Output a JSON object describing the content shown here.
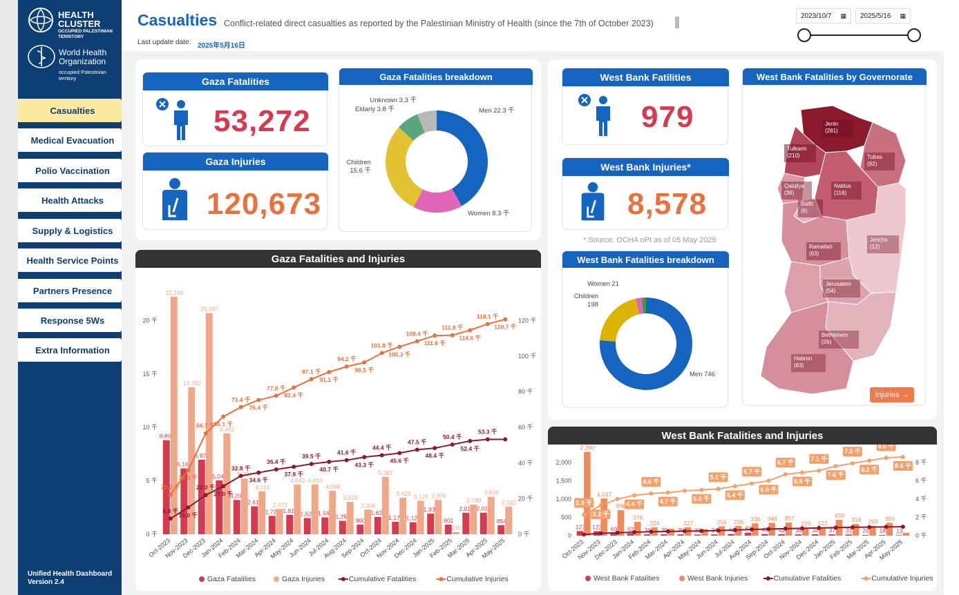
{
  "brand": {
    "line1": "HEALTH",
    "line2": "CLUSTER",
    "line3": "OCCUPIED PALESTINIAN",
    "line4": "TERRITORY",
    "who1": "World Health",
    "who2": "Organization",
    "who3": "occupied Palestinian",
    "who4": "territory"
  },
  "nav": {
    "items": [
      {
        "label": "Casualties",
        "active": true
      },
      {
        "label": "Medical Evacuation",
        "active": false
      },
      {
        "label": "Polio Vaccination",
        "active": false
      },
      {
        "label": "Health Attacks",
        "active": false
      },
      {
        "label": "Supply & Logistics",
        "active": false
      },
      {
        "label": "Health Service Points",
        "active": false
      },
      {
        "label": "Partners Presence",
        "active": false
      },
      {
        "label": "Response 5Ws",
        "active": false
      },
      {
        "label": "Extra Information",
        "active": false
      }
    ]
  },
  "footer": {
    "line1": "Unified Health Dashboard",
    "line2": "Version 2.4"
  },
  "header": {
    "title": "Casualties",
    "subtitle": "Conflict-related direct casualties as reported by the Palestinian Ministry of Health (since the 7th of October 2023)",
    "update_label": "Last update date:",
    "update_value": "2025年5月16日",
    "date_from": "2023/10/7",
    "date_to": "2025/5/16"
  },
  "gaza": {
    "fatal_title": "Gaza Fatalities",
    "fatal_value": "53,272",
    "injury_title": "Gaza Injuries",
    "injury_value": "120,673",
    "breakdown_title": "Gaza Fatalities breakdown",
    "breakdown": [
      {
        "label": "Men 22.3 千",
        "value": 22.3,
        "color": "#1565c0"
      },
      {
        "label": "Women 8.3 千",
        "value": 8.3,
        "color": "#e064b8"
      },
      {
        "label": "Children",
        "label2": "15.6 千",
        "value": 15.6,
        "color": "#e3c232"
      },
      {
        "label": "Eldarly 3.8 千",
        "value": 3.8,
        "color": "#5aa57c"
      },
      {
        "label": "Unknown 3.3 千",
        "value": 3.3,
        "color": "#b8b8b8"
      }
    ]
  },
  "west": {
    "fatal_title": "West Bank Fatilities",
    "fatal_value": "979",
    "injury_title": "West Bank Injuries*",
    "injury_value": "8,578",
    "source_note": "* Source: OCHA oPt as of 05 May 2025",
    "breakdown_title": "West Bank Fatalities breakdown",
    "breakdown": [
      {
        "label": "Men 746",
        "value": 746,
        "color": "#1565c0"
      },
      {
        "label": "Children",
        "label2": "198",
        "value": 198,
        "color": "#dab400"
      },
      {
        "label": "Women 21",
        "value": 21,
        "color": "#e064b8"
      },
      {
        "label": "",
        "value": 14,
        "color": "#3a9a4a"
      }
    ],
    "map_title": "West Bank Fatalities by Governorate",
    "map_button": "Injuries →",
    "governorates": [
      {
        "name": "Jenin",
        "value": "(281)"
      },
      {
        "name": "Tulkarm",
        "value": "(210)"
      },
      {
        "name": "Tubas",
        "value": "(92)"
      },
      {
        "name": "Qalqilya",
        "value": "(36)"
      },
      {
        "name": "Nablus",
        "value": "(116)"
      },
      {
        "name": "Salfit",
        "value": "(6)"
      },
      {
        "name": "Ramallah",
        "value": "(63)"
      },
      {
        "name": "Jericho",
        "value": "(12)"
      },
      {
        "name": "Jerusalem",
        "value": "(54)"
      },
      {
        "name": "Bethlehem",
        "value": "(26)"
      },
      {
        "name": "Hebron",
        "value": "(83)"
      }
    ]
  },
  "chart_data": [
    {
      "type": "bar",
      "title": "Gaza Fatalities and Injuries",
      "categories": [
        "Oct-2023",
        "Nov-2023",
        "Dec-2023",
        "Jan-2024",
        "Feb-2024",
        "Mar-2024",
        "Apr-2024",
        "May-2024",
        "Jun-2024",
        "Jul-2024",
        "Aug-2024",
        "Sep-2024",
        "Oct-2024",
        "Nov-2024",
        "Dec-2024",
        "Jan-2025",
        "Feb-2025",
        "Mar-2025",
        "Apr-2025",
        "May-2025"
      ],
      "y_left_ticks": [
        "0 千",
        "5 千",
        "10 千",
        "15 千",
        "20 千"
      ],
      "y_right_ticks": [
        "0 千",
        "20 千",
        "40 千",
        "60 千",
        "80 千",
        "100 千",
        "120 千"
      ],
      "ylim_left": [
        0,
        23000
      ],
      "ylim_right": [
        0,
        138000
      ],
      "series": [
        {
          "name": "Gaza Fatalities",
          "kind": "bar",
          "axis": "left",
          "color": "#d63a4f",
          "values": [
            8805,
            6165,
            6978,
            5041,
            3209,
            2617,
            1723,
            1811,
            1521,
            1580,
            1258,
            900,
            1621,
            1170,
            1124,
            1934,
            901,
            2011,
            2019,
            854
          ],
          "labels": [
            "8,805",
            "6,165",
            "6,978",
            "5,041",
            "3,209",
            "2,617",
            "1,723",
            "1,811",
            "1,521",
            "1,580",
            "1,258",
            "900",
            "1,621",
            "1,170",
            "1,124",
            "1,934",
            "901",
            "2,011",
            "2,019",
            "854"
          ]
        },
        {
          "name": "Gaza Injuries",
          "kind": "bar",
          "axis": "left",
          "color": "#f0a889",
          "values": [
            22240,
            13760,
            20697,
            9442,
            5220,
            4015,
            2373,
            4642,
            4653,
            4068,
            3026,
            2306,
            5367,
            3423,
            3129,
            3209,
            215,
            2780,
            3508,
            2582
          ],
          "labels": [
            "22,240",
            "13,760",
            "20,697",
            "9,442",
            "5,220",
            "4,015",
            "2,373",
            "4,642",
            "4,653",
            "4,068",
            "3,026",
            "2,306",
            "5,367",
            "3,423",
            "3,129",
            "3,209",
            "215",
            "2,780",
            "3,508",
            "2,582"
          ]
        },
        {
          "name": "Cumulative Fatalities",
          "kind": "line",
          "axis": "right",
          "color": "#8b1a2f",
          "values": [
            8800,
            15000,
            22000,
            27000,
            32800,
            34600,
            36400,
            37900,
            39500,
            40700,
            41600,
            43300,
            44400,
            45600,
            47500,
            48400,
            50400,
            52400,
            53300,
            53300
          ],
          "labels": [
            "8.8 千",
            "15.0 千",
            "22.0 千",
            "27.0 千",
            "32.8 千",
            "34.6 千",
            "36.4 千",
            "37.9 千",
            "39.5 千",
            "40.7 千",
            "41.6 千",
            "43.3 千",
            "44.4 千",
            "45.6 千",
            "47.5 千",
            "48.4 千",
            "50.4 千",
            "52.4 千",
            "53.3 千",
            ""
          ]
        },
        {
          "name": "Cumulative Injuries",
          "kind": "line",
          "axis": "right",
          "color": "#e8713d",
          "values": [
            22200,
            36000,
            56700,
            66100,
            71400,
            75400,
            77800,
            82400,
            87100,
            91100,
            94200,
            96500,
            101800,
            105300,
            108400,
            111600,
            111800,
            114600,
            118100,
            120700
          ],
          "labels": [
            "22.2 千",
            "36.0 千",
            "56.7 千",
            "66.1 千",
            "71.4 千",
            "75.4 千",
            "77.8 千",
            "82.4 千",
            "87.1 千",
            "91.1 千",
            "94.2 千",
            "96.5 千",
            "101.8 千",
            "105.3 千",
            "108.4 千",
            "111.6 千",
            "111.8 千",
            "114.6 千",
            "118.1 千",
            "120.7 千"
          ]
        }
      ],
      "legend": "bottom"
    },
    {
      "type": "bar",
      "title": "West Bank Fatalities and Injuries",
      "categories": [
        "Oct-2023",
        "Nov-2023",
        "Dec-2023",
        "Jan-2024",
        "Feb-2024",
        "Mar-2024",
        "Apr-2024",
        "May-2024",
        "Jun-2024",
        "Jul-2024",
        "Aug-2024",
        "Sep-2024",
        "Oct-2024",
        "Nov-2024",
        "Dec-2024",
        "Jan-2025",
        "Feb-2025",
        "Mar-2025",
        "Apr-2025",
        "May-2025"
      ],
      "y_left_ticks": [
        "0",
        "500",
        "1,000",
        "1,500",
        "2,000"
      ],
      "y_right_ticks": [
        "0 千",
        "2 千",
        "4 千",
        "6 千",
        "8 千"
      ],
      "ylim_left": [
        0,
        2300
      ],
      "ylim_right": [
        0,
        9200
      ],
      "series": [
        {
          "name": "West Bank Fatalities",
          "kind": "bar",
          "axis": "left",
          "color": "#d63a4f",
          "values": [
            127,
            123,
            69,
            62,
            36,
            39,
            35,
            29,
            34,
            46,
            82,
            45,
            42,
            36,
            38,
            37,
            31,
            20,
            18,
            13
          ],
          "labels": [
            "127",
            "123",
            "69",
            "62",
            "36",
            "39",
            "35",
            "29",
            "34",
            "46",
            "82",
            "45",
            "42",
            "36",
            "38",
            "37",
            "31",
            "20",
            "18",
            "13"
          ]
        },
        {
          "name": "West Bank Injuries",
          "kind": "bar",
          "axis": "left",
          "color": "#f08a5b",
          "values": [
            2290,
            1017,
            696,
            376,
            224,
            190,
            227,
            180,
            255,
            266,
            336,
            348,
            357,
            220,
            222,
            433,
            318,
            269,
            350,
            80
          ],
          "labels": [
            "2,290",
            "1,017",
            "696",
            "376",
            "224",
            "",
            "227",
            "",
            "255",
            "266",
            "336",
            "348",
            "357",
            "220",
            "222",
            "433",
            "318",
            "269",
            "350",
            ""
          ]
        },
        {
          "name": "Cumulative Fatalities",
          "kind": "line",
          "axis": "right",
          "color": "#8b1a2f",
          "values": [
            127,
            250,
            320,
            380,
            420,
            460,
            490,
            520,
            560,
            600,
            680,
            720,
            760,
            800,
            840,
            880,
            910,
            930,
            950,
            970
          ],
          "labels": []
        },
        {
          "name": "Cumulative Injuries",
          "kind": "line",
          "axis": "right",
          "color": "#f4a06a",
          "values": [
            2300,
            3300,
            4000,
            4400,
            4600,
            4700,
            4900,
            5000,
            5100,
            5400,
            5700,
            6000,
            6700,
            6900,
            7100,
            7600,
            7900,
            8200,
            8500,
            8600
          ],
          "labels": [
            "2.3 千",
            "3.3 千",
            "",
            "4.4 千",
            "4.6 千",
            "4.7 千",
            "",
            "5.0 千",
            "5.1 千",
            "5.4 千",
            "5.7 千",
            "6.0 千",
            "6.7 千",
            "6.9 千",
            "7.1 千",
            "7.6 千",
            "7.9 千",
            "8.2 千",
            "8.5 千",
            "8.6 千"
          ]
        }
      ],
      "legend": "bottom"
    }
  ]
}
